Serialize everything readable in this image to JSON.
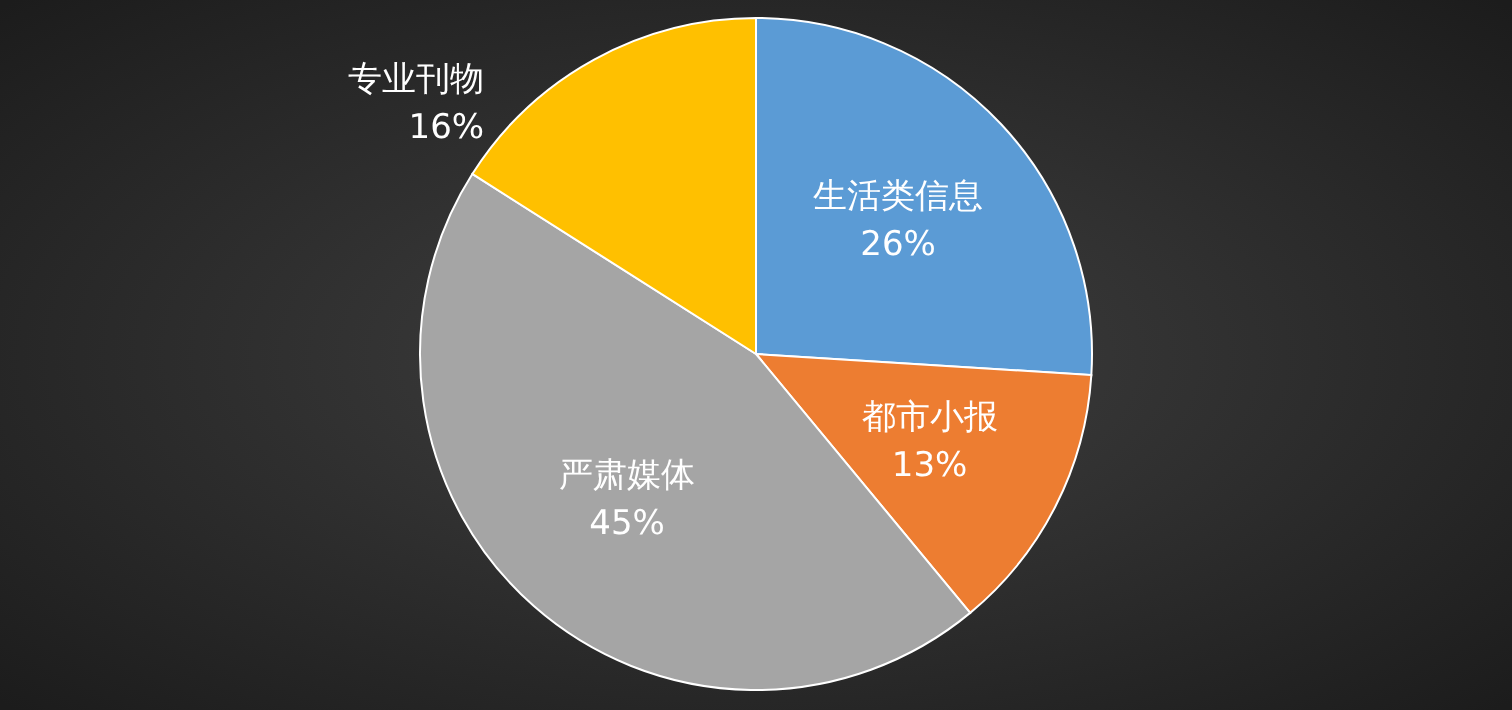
{
  "chart_data": {
    "type": "pie",
    "categories": [
      "生活类信息",
      "都市小报",
      "严肃媒体",
      "专业刊物"
    ],
    "values": [
      26,
      13,
      45,
      16
    ],
    "value_labels": [
      "26%",
      "13%",
      "45%",
      "16%"
    ],
    "colors": [
      "#5b9bd5",
      "#ed7d31",
      "#a5a5a5",
      "#ffc000"
    ]
  }
}
